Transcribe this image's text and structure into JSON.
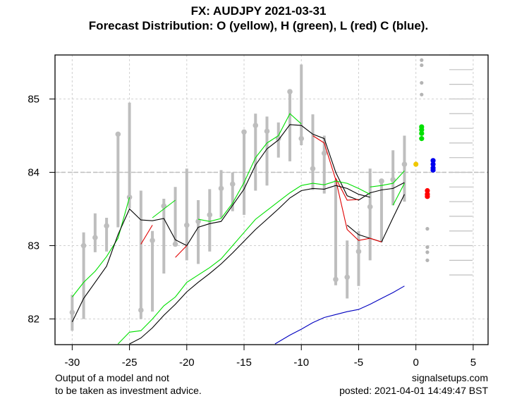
{
  "chart_data": {
    "type": "line",
    "title": "FX: AUDJPY 2021-03-31",
    "subtitle": "Forecast Distribution: O (yellow), H (green), L (red) C (blue).",
    "xlabel": "",
    "ylabel": "",
    "xlim": [
      -31.5,
      6.3
    ],
    "ylim": [
      81.65,
      85.6
    ],
    "grid": true,
    "x_ticks": [
      -30,
      -25,
      -20,
      -15,
      -10,
      -5,
      0,
      5
    ],
    "y_ticks": [
      82,
      83,
      84,
      85
    ],
    "reference_line_y": 84.0,
    "ohlc_bars": [
      {
        "x": -30,
        "low": 81.84,
        "high": 82.33,
        "close": 82.09
      },
      {
        "x": -29,
        "low": 82.0,
        "high": 83.18,
        "close": 83.0
      },
      {
        "x": -28,
        "low": 82.91,
        "high": 83.44,
        "close": 83.11
      },
      {
        "x": -27,
        "low": 82.92,
        "high": 83.38,
        "close": 83.27
      },
      {
        "x": -26,
        "low": 83.25,
        "high": 84.52,
        "close": 84.52
      },
      {
        "x": -25,
        "low": 83.51,
        "high": 84.95,
        "close": 83.66
      },
      {
        "x": -24,
        "low": 82.0,
        "high": 83.75,
        "close": 82.12
      },
      {
        "x": -23,
        "low": 82.1,
        "high": 83.2,
        "close": 83.07
      },
      {
        "x": -22,
        "low": 82.62,
        "high": 83.64,
        "close": 83.54
      },
      {
        "x": -21,
        "low": 83.0,
        "high": 83.8,
        "close": 83.02
      },
      {
        "x": -20,
        "low": 82.8,
        "high": 84.05,
        "close": 83.28
      },
      {
        "x": -19,
        "low": 82.75,
        "high": 83.62,
        "close": 83.33
      },
      {
        "x": -18,
        "low": 82.92,
        "high": 83.77,
        "close": 83.42
      },
      {
        "x": -17,
        "low": 83.38,
        "high": 84.03,
        "close": 83.78
      },
      {
        "x": -16,
        "low": 83.47,
        "high": 84.0,
        "close": 83.84
      },
      {
        "x": -15,
        "low": 83.42,
        "high": 84.55,
        "close": 84.55
      },
      {
        "x": -14,
        "low": 83.75,
        "high": 84.8,
        "close": 84.64
      },
      {
        "x": -13,
        "low": 83.82,
        "high": 84.76,
        "close": 84.56
      },
      {
        "x": -12,
        "low": 84.2,
        "high": 84.68,
        "close": 84.46
      },
      {
        "x": -11,
        "low": 84.15,
        "high": 85.13,
        "close": 85.1
      },
      {
        "x": -10,
        "low": 84.37,
        "high": 85.47,
        "close": 84.46
      },
      {
        "x": -9,
        "low": 83.76,
        "high": 84.79,
        "close": 84.05
      },
      {
        "x": -8,
        "low": 83.71,
        "high": 84.5,
        "close": 84.26
      },
      {
        "x": -7,
        "low": 82.46,
        "high": 83.9,
        "close": 82.54
      },
      {
        "x": -6,
        "low": 82.28,
        "high": 83.07,
        "close": 82.57
      },
      {
        "x": -5,
        "low": 82.45,
        "high": 83.2,
        "close": 82.92
      },
      {
        "x": -4,
        "low": 82.8,
        "high": 84.05,
        "close": 83.53
      },
      {
        "x": -3,
        "low": 83.05,
        "high": 83.88,
        "close": 83.88
      },
      {
        "x": -2,
        "low": 83.55,
        "high": 84.3,
        "close": 83.9
      },
      {
        "x": -1,
        "low": 83.6,
        "high": 84.5,
        "close": 84.11
      }
    ],
    "series": [
      {
        "name": "upper-green-band",
        "color": "#00e000",
        "segments": [
          [
            [
              -30,
              82.3
            ],
            [
              -29,
              82.5
            ],
            [
              -28,
              82.65
            ],
            [
              -27,
              82.85
            ],
            [
              -26,
              83.1
            ],
            [
              -25,
              83.66
            ]
          ],
          [
            [
              -23,
              83.38
            ],
            [
              -22,
              83.5
            ],
            [
              -21,
              83.62
            ]
          ],
          [
            [
              -19,
              83.36
            ],
            [
              -18,
              83.33
            ],
            [
              -17,
              83.37
            ],
            [
              -16,
              83.58
            ],
            [
              -15,
              83.86
            ],
            [
              -14,
              84.2
            ],
            [
              -13,
              84.4
            ],
            [
              -12,
              84.5
            ],
            [
              -11,
              84.8
            ],
            [
              -10,
              84.66
            ]
          ],
          [
            [
              -4,
              83.8
            ],
            [
              -3,
              83.82
            ],
            [
              -2,
              83.85
            ],
            [
              -1,
              84.02
            ]
          ],
          [
            [
              -2,
              83.55
            ],
            [
              -1,
              83.85
            ]
          ]
        ]
      },
      {
        "name": "main-black-line",
        "color": "#000000",
        "segments": [
          [
            [
              -30,
              81.96
            ],
            [
              -29,
              82.28
            ],
            [
              -28,
              82.5
            ],
            [
              -27,
              82.72
            ],
            [
              -26,
              83.15
            ],
            [
              -25,
              83.5
            ],
            [
              -24,
              83.35
            ],
            [
              -23,
              83.34
            ],
            [
              -22,
              83.37
            ],
            [
              -21,
              83.08
            ],
            [
              -20,
              83.0
            ],
            [
              -19,
              83.25
            ],
            [
              -18,
              83.3
            ],
            [
              -17,
              83.33
            ],
            [
              -16,
              83.55
            ],
            [
              -15,
              83.77
            ],
            [
              -14,
              84.1
            ],
            [
              -13,
              84.32
            ],
            [
              -12,
              84.44
            ],
            [
              -11,
              84.65
            ],
            [
              -10,
              84.64
            ],
            [
              -9,
              84.52
            ],
            [
              -8,
              84.46
            ],
            [
              -7,
              84.0
            ],
            [
              -6,
              83.68
            ],
            [
              -5,
              83.62
            ],
            [
              -4,
              83.72
            ],
            [
              -3,
              83.76
            ],
            [
              -2,
              83.78
            ],
            [
              -1,
              83.86
            ]
          ],
          [
            [
              -6,
              83.28
            ],
            [
              -5,
              83.15
            ],
            [
              -4,
              83.1
            ],
            [
              -3,
              83.05
            ],
            [
              -2,
              83.38
            ],
            [
              -1,
              83.7
            ]
          ]
        ]
      },
      {
        "name": "lower-red-line",
        "color": "#e00000",
        "segments": [
          [
            [
              -24,
              83.02
            ],
            [
              -23,
              83.28
            ]
          ],
          [
            [
              -21,
              82.84
            ],
            [
              -20,
              83.0
            ]
          ],
          [
            [
              -9,
              84.5
            ],
            [
              -8,
              84.4
            ],
            [
              -7,
              83.9
            ],
            [
              -6,
              83.22
            ],
            [
              -5,
              83.07
            ],
            [
              -4,
              83.1
            ],
            [
              -3,
              83.05
            ]
          ],
          [
            [
              -7,
              83.92
            ],
            [
              -6,
              83.62
            ],
            [
              -5,
              83.63
            ]
          ]
        ]
      },
      {
        "name": "long-green-band",
        "color": "#00e000",
        "segments": [
          [
            [
              -26,
              81.66
            ],
            [
              -25,
              81.82
            ],
            [
              -24,
              81.84
            ],
            [
              -23,
              82.0
            ],
            [
              -22,
              82.18
            ],
            [
              -21,
              82.3
            ],
            [
              -20,
              82.5
            ],
            [
              -19,
              82.6
            ],
            [
              -18,
              82.7
            ],
            [
              -17,
              82.82
            ],
            [
              -16,
              83.0
            ],
            [
              -15,
              83.18
            ],
            [
              -14,
              83.36
            ],
            [
              -13,
              83.48
            ],
            [
              -12,
              83.6
            ],
            [
              -11,
              83.72
            ],
            [
              -10,
              83.82
            ],
            [
              -9,
              83.85
            ],
            [
              -8,
              83.83
            ],
            [
              -7,
              83.88
            ],
            [
              -6,
              83.85
            ],
            [
              -5,
              83.78
            ],
            [
              -4,
              83.7
            ]
          ]
        ]
      },
      {
        "name": "long-black-line",
        "color": "#000000",
        "segments": [
          [
            [
              -25,
              81.66
            ],
            [
              -24,
              81.74
            ],
            [
              -23,
              81.88
            ],
            [
              -22,
              82.05
            ],
            [
              -21,
              82.2
            ],
            [
              -20,
              82.37
            ],
            [
              -19,
              82.5
            ],
            [
              -18,
              82.62
            ],
            [
              -17,
              82.75
            ],
            [
              -16,
              82.9
            ],
            [
              -15,
              83.06
            ],
            [
              -14,
              83.22
            ],
            [
              -13,
              83.36
            ],
            [
              -12,
              83.5
            ],
            [
              -11,
              83.65
            ],
            [
              -10,
              83.75
            ],
            [
              -9,
              83.78
            ],
            [
              -8,
              83.77
            ],
            [
              -7,
              83.82
            ],
            [
              -6,
              83.78
            ],
            [
              -5,
              83.7
            ],
            [
              -4,
              83.66
            ]
          ]
        ]
      },
      {
        "name": "long-blue-line",
        "color": "#0000c0",
        "segments": [
          [
            [
              -12.3,
              81.66
            ],
            [
              -11,
              81.78
            ],
            [
              -10,
              81.86
            ],
            [
              -9,
              81.95
            ],
            [
              -8,
              82.02
            ],
            [
              -7,
              82.06
            ],
            [
              -6,
              82.1
            ],
            [
              -5,
              82.13
            ],
            [
              -4,
              82.2
            ],
            [
              -3,
              82.28
            ],
            [
              -2,
              82.36
            ],
            [
              -1,
              82.45
            ]
          ]
        ]
      }
    ],
    "forecast_points": {
      "open_yellow": {
        "color": "#f0c800",
        "x": 0.0,
        "values": [
          84.11
        ]
      },
      "high_green": {
        "color": "#00e000",
        "x": 0.5,
        "values": [
          84.62,
          84.58,
          84.53,
          84.46
        ]
      },
      "low_red": {
        "color": "#ff0000",
        "x": 1.0,
        "values": [
          83.75,
          83.7,
          83.67
        ]
      },
      "close_blue": {
        "color": "#0000ee",
        "x": 1.5,
        "values": [
          84.16,
          84.11,
          84.06,
          84.03
        ]
      },
      "gray_upper": {
        "color": "#b4b4b4",
        "x": 0.5,
        "values": [
          85.53,
          85.46,
          85.22,
          85.06
        ]
      },
      "gray_lower": {
        "color": "#b4b4b4",
        "x": 1.0,
        "values": [
          83.23,
          82.98,
          82.91,
          82.8
        ]
      }
    },
    "right_scale_lines": [
      85.6,
      85.4,
      85.2,
      85.0,
      84.8,
      84.6,
      84.4,
      84.2,
      84.0,
      83.8,
      83.6,
      83.4,
      83.2,
      83.0,
      82.8,
      82.6
    ]
  },
  "footer": {
    "left_line1": "Output of a model and not",
    "left_line2": "to be taken as investment advice.",
    "right_line1": "signalsetups.com",
    "right_line2": "posted: 2021-04-01 14:49:47 BST"
  }
}
